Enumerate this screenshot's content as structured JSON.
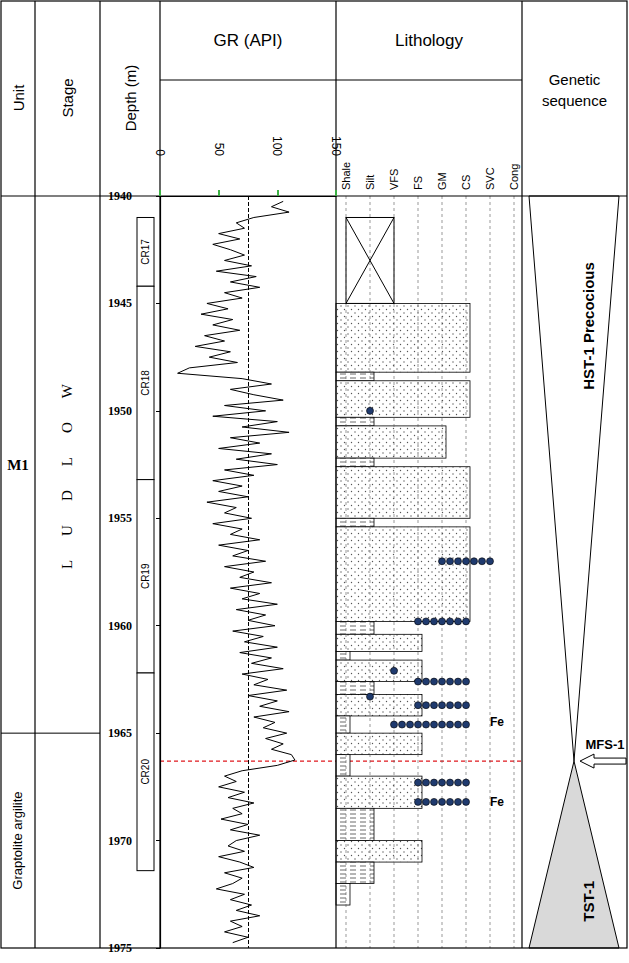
{
  "chart_data": {
    "type": "line",
    "xlabel": "GR (API)",
    "ylabel": "Depth (m)",
    "x": [
      105,
      95,
      110,
      80,
      65,
      72,
      50,
      68,
      45,
      60,
      72,
      55,
      78,
      48,
      82,
      60,
      85,
      55,
      70,
      40,
      58,
      35,
      62,
      45,
      68,
      38,
      55,
      30,
      60,
      42,
      66,
      25,
      15,
      70,
      95,
      60,
      80,
      105,
      55,
      90,
      45,
      100,
      70,
      110,
      60,
      85,
      50,
      95,
      65,
      100,
      55,
      80,
      45,
      70,
      50,
      75,
      40,
      65,
      55,
      78,
      45,
      70,
      60,
      85,
      50,
      75,
      62,
      90,
      55,
      80,
      68,
      95,
      60,
      85,
      70,
      100,
      65,
      90,
      75,
      98,
      62,
      88,
      72,
      100,
      68,
      95,
      78,
      105,
      70,
      92,
      80,
      108,
      75,
      100,
      85,
      110,
      80,
      98,
      88,
      108,
      90,
      105,
      95,
      112,
      115,
      100,
      70,
      55,
      65,
      50,
      72,
      58,
      80,
      62,
      70,
      52,
      75,
      60,
      85,
      65,
      58,
      72,
      50,
      68,
      80,
      55,
      70,
      62,
      48,
      72,
      60,
      78,
      65,
      85,
      60,
      70,
      55,
      75,
      62
    ],
    "y": [
      1940.25,
      1940.5,
      1940.75,
      1941,
      1941.25,
      1941.5,
      1941.75,
      1942,
      1942.25,
      1942.5,
      1942.75,
      1943,
      1943.25,
      1943.5,
      1943.75,
      1944,
      1944.25,
      1944.5,
      1944.75,
      1945,
      1945.25,
      1945.5,
      1945.75,
      1946,
      1946.25,
      1946.5,
      1946.75,
      1947,
      1947.25,
      1947.5,
      1947.75,
      1948,
      1948.25,
      1948.5,
      1948.75,
      1949,
      1949.25,
      1949.5,
      1949.75,
      1950,
      1950.25,
      1950.5,
      1950.75,
      1951,
      1951.25,
      1951.5,
      1951.75,
      1952,
      1952.25,
      1952.5,
      1952.75,
      1953,
      1953.25,
      1953.5,
      1953.75,
      1954,
      1954.25,
      1954.5,
      1954.75,
      1955,
      1955.25,
      1955.5,
      1955.75,
      1956,
      1956.25,
      1956.5,
      1956.75,
      1957,
      1957.25,
      1957.5,
      1957.75,
      1958,
      1958.25,
      1958.5,
      1958.75,
      1959,
      1959.25,
      1959.5,
      1959.75,
      1960,
      1960.25,
      1960.5,
      1960.75,
      1961,
      1961.25,
      1961.5,
      1961.75,
      1962,
      1962.25,
      1962.5,
      1962.75,
      1963,
      1963.25,
      1963.5,
      1963.75,
      1964,
      1964.25,
      1964.5,
      1964.75,
      1965,
      1965.25,
      1965.5,
      1965.75,
      1966,
      1966.25,
      1966.5,
      1966.75,
      1967,
      1967.25,
      1967.5,
      1967.75,
      1968,
      1968.25,
      1968.5,
      1968.75,
      1969,
      1969.25,
      1969.5,
      1969.75,
      1970,
      1970.25,
      1970.5,
      1970.75,
      1971,
      1971.25,
      1971.5,
      1971.75,
      1972,
      1972.25,
      1972.5,
      1972.75,
      1973,
      1973.25,
      1973.5,
      1973.75,
      1974,
      1974.25,
      1974.5,
      1974.75
    ],
    "color": "#000000",
    "gr_cutoff": 75,
    "xlim": [
      0,
      150
    ],
    "xticks": [
      0,
      50,
      100,
      150
    ],
    "ylim": [
      1940,
      1975
    ],
    "yticks": [
      1940,
      1945,
      1950,
      1955,
      1960,
      1965,
      1970,
      1975
    ],
    "grid": false
  },
  "log": {
    "headers": {
      "unit": "Unit",
      "stage": "Stage",
      "lithology": "Lithology",
      "sequence": "Genetic sequence"
    },
    "units": [
      {
        "name": "M1",
        "top": 1940,
        "bottom": 1965
      },
      {
        "name": "Graptolite argilite",
        "top": 1965,
        "bottom": 1975
      }
    ],
    "stages": [
      {
        "name": "LUDLOW",
        "top": 1940,
        "bottom": 1965
      }
    ],
    "cores": [
      {
        "name": "CR17",
        "top": 1941,
        "bottom": 1944.2
      },
      {
        "name": "CR18",
        "top": 1944.2,
        "bottom": 1953.2
      },
      {
        "name": "CR19",
        "top": 1953.2,
        "bottom": 1962.2
      },
      {
        "name": "CR20",
        "top": 1962.2,
        "bottom": 1971.4
      }
    ],
    "lithology": {
      "classes": [
        "Shale",
        "Silt",
        "VFS",
        "FS",
        "GM",
        "CS",
        "SVC",
        "Cong"
      ],
      "no_core": {
        "top": 1941,
        "bottom": 1945
      },
      "beds": [
        [
          1945,
          1948.2,
          "CS"
        ],
        [
          1948.2,
          1948.6,
          "Silt"
        ],
        [
          1948.6,
          1950.3,
          "CS"
        ],
        [
          1950.3,
          1950.7,
          "Silt"
        ],
        [
          1950.7,
          1952.2,
          "GM"
        ],
        [
          1952.2,
          1952.6,
          "Silt"
        ],
        [
          1952.6,
          1955,
          "CS"
        ],
        [
          1955,
          1955.4,
          "Silt"
        ],
        [
          1955.4,
          1959.8,
          "CS"
        ],
        [
          1959.8,
          1960.4,
          "Silt"
        ],
        [
          1960.4,
          1961.2,
          "FS"
        ],
        [
          1961.2,
          1961.6,
          "Shale"
        ],
        [
          1961.6,
          1962.6,
          "FS"
        ],
        [
          1962.6,
          1963.2,
          "Silt"
        ],
        [
          1963.2,
          1964.2,
          "FS"
        ],
        [
          1964.2,
          1965,
          "Shale"
        ],
        [
          1965,
          1966,
          "FS"
        ],
        [
          1966,
          1967,
          "Shale"
        ],
        [
          1967,
          1968.5,
          "FS"
        ],
        [
          1968.5,
          1970,
          "Silt"
        ],
        [
          1970,
          1971,
          "FS"
        ],
        [
          1971,
          1972,
          "Silt"
        ],
        [
          1972,
          1973,
          "Shale"
        ]
      ],
      "ooids": [
        [
          1950,
          "Silt",
          "Silt"
        ],
        [
          1957,
          "GM",
          "SVC"
        ],
        [
          1959.8,
          "FS",
          "CS"
        ],
        [
          1962.1,
          "VFS",
          "VFS"
        ],
        [
          1962.6,
          "FS",
          "CS"
        ],
        [
          1963.3,
          "Silt",
          "Silt"
        ],
        [
          1963.7,
          "FS",
          "CS"
        ],
        [
          1964.6,
          "VFS",
          "CS"
        ],
        [
          1967.3,
          "FS",
          "CS"
        ],
        [
          1968.2,
          "FS",
          "CS"
        ]
      ],
      "labels": [
        {
          "text": "Fe",
          "depth": 1964.5,
          "class": "SVC"
        },
        {
          "text": "Fe",
          "depth": 1968.2,
          "class": "SVC"
        }
      ]
    },
    "sequences": [
      {
        "name": "HST-1 Precocious",
        "top": 1940,
        "bottom": 1966.3,
        "color": "#ffffff"
      },
      {
        "name": "TST-1",
        "top": 1966.3,
        "bottom": 1975,
        "color": "#d9d9d9"
      }
    ],
    "surfaces": [
      {
        "name": "MFS-1",
        "depth": 1966.3
      }
    ]
  }
}
